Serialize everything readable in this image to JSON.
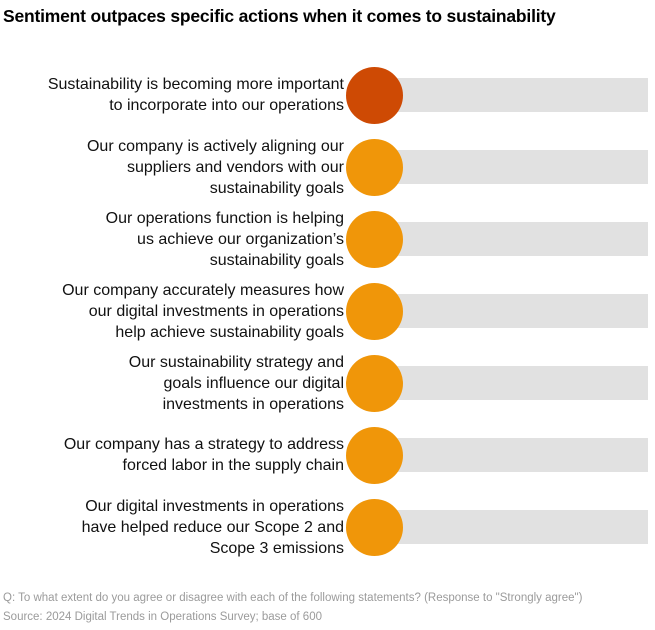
{
  "title": "Sentiment outpaces specific actions when it comes to sustainability",
  "chart_data": {
    "type": "bar",
    "title": "Sentiment outpaces specific actions when it comes to sustainability",
    "categories": [
      "Sustainability is becoming more important to incorporate into our operations",
      "Our company is actively aligning our suppliers and vendors with our sustainability goals",
      "Our operations function is helping us achieve our organization’s sustainability goals",
      "Our company accurately measures how our digital investments in operations help achieve sustainability goals",
      "Our sustainability strategy and goals influence our digital investments in operations",
      "Our company has a strategy to address forced labor in the supply chain",
      "Our digital investments in operations have helped reduce our Scope 2 and Scope 3 emissions"
    ],
    "values_shown": false,
    "marker_note": "Each statement has a full-width gray track with a round dot marker at the left end; no numeric data labels, axes, ticks or gridlines are displayed",
    "highlight_index": 0,
    "legend": "none",
    "rows": [
      {
        "label": "Sustainability is becoming more important\nto incorporate into our operations",
        "dot_color": "#CE4A04"
      },
      {
        "label": "Our company is actively aligning our\nsuppliers and vendors with our\nsustainability goals",
        "dot_color": "#F09609"
      },
      {
        "label": "Our operations function is helping\nus achieve our organization’s\nsustainability goals",
        "dot_color": "#F09609"
      },
      {
        "label": "Our company accurately measures how\nour digital investments in operations\nhelp achieve sustainability goals",
        "dot_color": "#F09609"
      },
      {
        "label": "Our sustainability strategy and\ngoals influence our digital\ninvestments in operations",
        "dot_color": "#F09609"
      },
      {
        "label": "Our company has a strategy to address\nforced labor in the supply chain",
        "dot_color": "#F09609"
      },
      {
        "label": "Our digital investments in operations\nhave helped reduce our Scope 2 and\nScope 3 emissions",
        "dot_color": "#F09609"
      }
    ]
  },
  "footer": {
    "question": "Q: To what extent do you agree or disagree with each of the following statements? (Response to \"Strongly agree\")",
    "source": "Source: 2024 Digital Trends in Operations Survey; base of 600"
  },
  "colors": {
    "highlight_dot": "#CE4A04",
    "dot": "#F09609",
    "track": "#E1E1E1",
    "title_text": "#000000",
    "label_text": "#111111",
    "footer_text": "#9B9B9B",
    "background": "#FFFFFF"
  }
}
